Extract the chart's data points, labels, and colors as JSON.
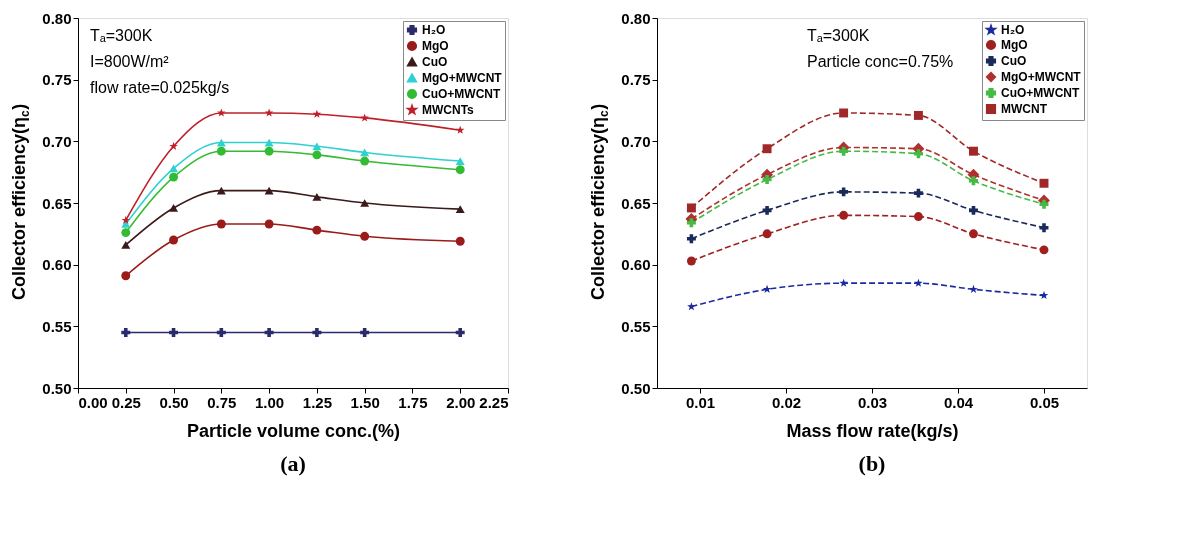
{
  "chart_data": [
    {
      "type": "line",
      "title": "(a)",
      "xlabel": "Particle volume conc.(%)",
      "ylabel": "Collector efficiency(η$_{c}$)",
      "annotations": [
        "Tₐ=300K",
        "I=800W/m²",
        "flow rate=0.025kg/s"
      ],
      "x": [
        0.25,
        0.5,
        0.75,
        1.0,
        1.25,
        1.5,
        2.0
      ],
      "xlim": [
        0,
        2.25
      ],
      "ylim": [
        0.5,
        0.8
      ],
      "xticks": [
        {
          "value": 0,
          "label": "0.00"
        },
        0.25,
        {
          "value": 0.5,
          "label": "0.50"
        },
        0.75,
        {
          "value": 1,
          "label": "1.00"
        },
        1.25,
        {
          "value": 1.5,
          "label": "1.50"
        },
        1.75,
        {
          "value": 2,
          "label": "2.00"
        },
        2.25
      ],
      "yticks": [
        {
          "value": 0.5,
          "label": "0.50"
        },
        0.55,
        {
          "value": 0.6,
          "label": "0.60"
        },
        0.65,
        {
          "value": 0.7,
          "label": "0.70"
        },
        0.75,
        {
          "value": 0.8,
          "label": "0.80"
        }
      ],
      "grid": false,
      "legend": "top right",
      "line_style": "solid",
      "series": [
        {
          "name": "H₂O",
          "color": "#2b2b6b",
          "marker": "cross",
          "values": [
            0.545,
            0.545,
            0.545,
            0.545,
            0.545,
            0.545,
            0.545
          ]
        },
        {
          "name": "MgO",
          "color": "#9b1b1b",
          "marker": "circle",
          "values": [
            0.591,
            0.62,
            0.633,
            0.633,
            0.628,
            0.623,
            0.619
          ]
        },
        {
          "name": "CuO",
          "color": "#3a1a1a",
          "marker": "triangle",
          "values": [
            0.616,
            0.646,
            0.66,
            0.66,
            0.655,
            0.65,
            0.645
          ]
        },
        {
          "name": "MgO+MWCNT",
          "color": "#2fd0d0",
          "marker": "triangle",
          "values": [
            0.633,
            0.678,
            0.699,
            0.699,
            0.696,
            0.691,
            0.684
          ]
        },
        {
          "name": "CuO+MWCNT",
          "color": "#33bb33",
          "marker": "circle",
          "values": [
            0.626,
            0.671,
            0.692,
            0.692,
            0.689,
            0.684,
            0.677
          ]
        },
        {
          "name": "MWCNTs",
          "color": "#c0202a",
          "marker": "star",
          "values": [
            0.636,
            0.696,
            0.723,
            0.723,
            0.722,
            0.719,
            0.709
          ]
        }
      ]
    },
    {
      "type": "line",
      "title": "(b)",
      "xlabel": "Mass flow rate(kg/s)",
      "ylabel": "Collector efficiency(η$_{c}$)",
      "annotations": [
        "Tₐ=300K",
        "Particle conc=0.75%"
      ],
      "x": [
        0.009,
        0.0178,
        0.0267,
        0.0354,
        0.0418,
        0.05
      ],
      "xlim": [
        0.005,
        0.055
      ],
      "ylim": [
        0.5,
        0.8
      ],
      "xticks": [
        0.01,
        0.02,
        0.03,
        0.04,
        0.05
      ],
      "yticks": [
        {
          "value": 0.5,
          "label": "0.50"
        },
        0.55,
        {
          "value": 0.6,
          "label": "0.60"
        },
        0.65,
        {
          "value": 0.7,
          "label": "0.70"
        },
        0.75,
        {
          "value": 0.8,
          "label": "0.80"
        }
      ],
      "grid": false,
      "legend": "top right",
      "line_style": "dashed",
      "series": [
        {
          "name": "H₂O",
          "color": "#1a2aa0",
          "marker": "star",
          "values": [
            0.566,
            0.58,
            0.585,
            0.585,
            0.58,
            0.575
          ]
        },
        {
          "name": "MgO",
          "color": "#a02020",
          "marker": "circle",
          "values": [
            0.603,
            0.625,
            0.64,
            0.639,
            0.625,
            0.612
          ]
        },
        {
          "name": "CuO",
          "color": "#1a2a5a",
          "marker": "cross",
          "values": [
            0.621,
            0.644,
            0.659,
            0.658,
            0.644,
            0.63
          ]
        },
        {
          "name": "MgO+MWCNT",
          "color": "#b03030",
          "marker": "diamond",
          "values": [
            0.637,
            0.673,
            0.695,
            0.694,
            0.673,
            0.652
          ]
        },
        {
          "name": "CuO+MWCNT",
          "color": "#44bb44",
          "marker": "cross",
          "values": [
            0.634,
            0.669,
            0.692,
            0.69,
            0.668,
            0.649
          ]
        },
        {
          "name": "MWCNT",
          "color": "#a02828",
          "marker": "square",
          "values": [
            0.646,
            0.694,
            0.723,
            0.721,
            0.692,
            0.666
          ]
        }
      ]
    }
  ]
}
